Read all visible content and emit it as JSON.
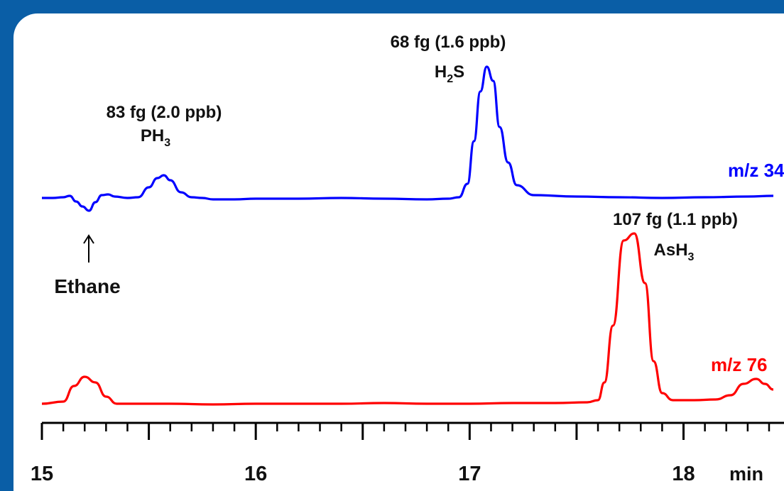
{
  "chart_data": {
    "type": "line",
    "xlabel": "min",
    "xlim": [
      15,
      18.42
    ],
    "ticks": {
      "major": [
        15,
        15.5,
        16,
        16.5,
        17,
        17.5,
        18
      ],
      "minor_step": 0.1,
      "labels": [
        "15",
        "16",
        "17",
        "18"
      ],
      "label_values": [
        15,
        16,
        17,
        18
      ]
    },
    "series": [
      {
        "name": "m/z 34",
        "color": "#0000ff",
        "x": [
          15.0,
          15.05,
          15.1,
          15.13,
          15.16,
          15.19,
          15.22,
          15.25,
          15.28,
          15.31,
          15.34,
          15.4,
          15.45,
          15.5,
          15.54,
          15.57,
          15.6,
          15.65,
          15.7,
          15.75,
          15.8,
          15.9,
          16.0,
          16.2,
          16.4,
          16.6,
          16.8,
          16.9,
          16.95,
          16.99,
          17.02,
          17.05,
          17.08,
          17.11,
          17.14,
          17.18,
          17.22,
          17.3,
          17.5,
          17.7,
          17.9,
          18.1,
          18.3,
          18.42
        ],
        "y": [
          0,
          0,
          1,
          3,
          -5,
          -12,
          -18,
          -6,
          4,
          5,
          2,
          0,
          1,
          15,
          28,
          32,
          25,
          8,
          1,
          0,
          -2,
          -2,
          -1,
          -1,
          0,
          -1,
          -2,
          -1,
          1,
          20,
          80,
          150,
          185,
          165,
          100,
          50,
          18,
          4,
          2,
          1,
          0,
          1,
          2,
          3
        ]
      },
      {
        "name": "m/z 76",
        "color": "#ff0000",
        "x": [
          15.0,
          15.1,
          15.15,
          15.2,
          15.25,
          15.3,
          15.35,
          15.4,
          15.6,
          15.8,
          16.0,
          16.2,
          16.4,
          16.6,
          16.8,
          17.0,
          17.2,
          17.4,
          17.55,
          17.6,
          17.63,
          17.67,
          17.72,
          17.77,
          17.82,
          17.86,
          17.9,
          17.95,
          18.05,
          18.15,
          18.22,
          18.28,
          18.34,
          18.38,
          18.42
        ],
        "y": [
          0,
          3,
          25,
          38,
          30,
          10,
          0,
          0,
          0,
          -1,
          0,
          0,
          0,
          1,
          0,
          0,
          1,
          1,
          2,
          5,
          30,
          110,
          230,
          240,
          170,
          60,
          15,
          5,
          5,
          6,
          12,
          28,
          35,
          28,
          20
        ]
      }
    ],
    "annotations": {
      "ph3": {
        "amount": "83 fg (2.0 ppb)",
        "compound": "PH",
        "sub": "3"
      },
      "h2s": {
        "amount": "68 fg (1.6 ppb)",
        "compound_a": "H",
        "sub": "2",
        "compound_b": "S"
      },
      "ash3": {
        "amount": "107 fg (1.1 ppb)",
        "compound": "AsH",
        "sub": "3"
      },
      "ethane": "Ethane"
    }
  }
}
